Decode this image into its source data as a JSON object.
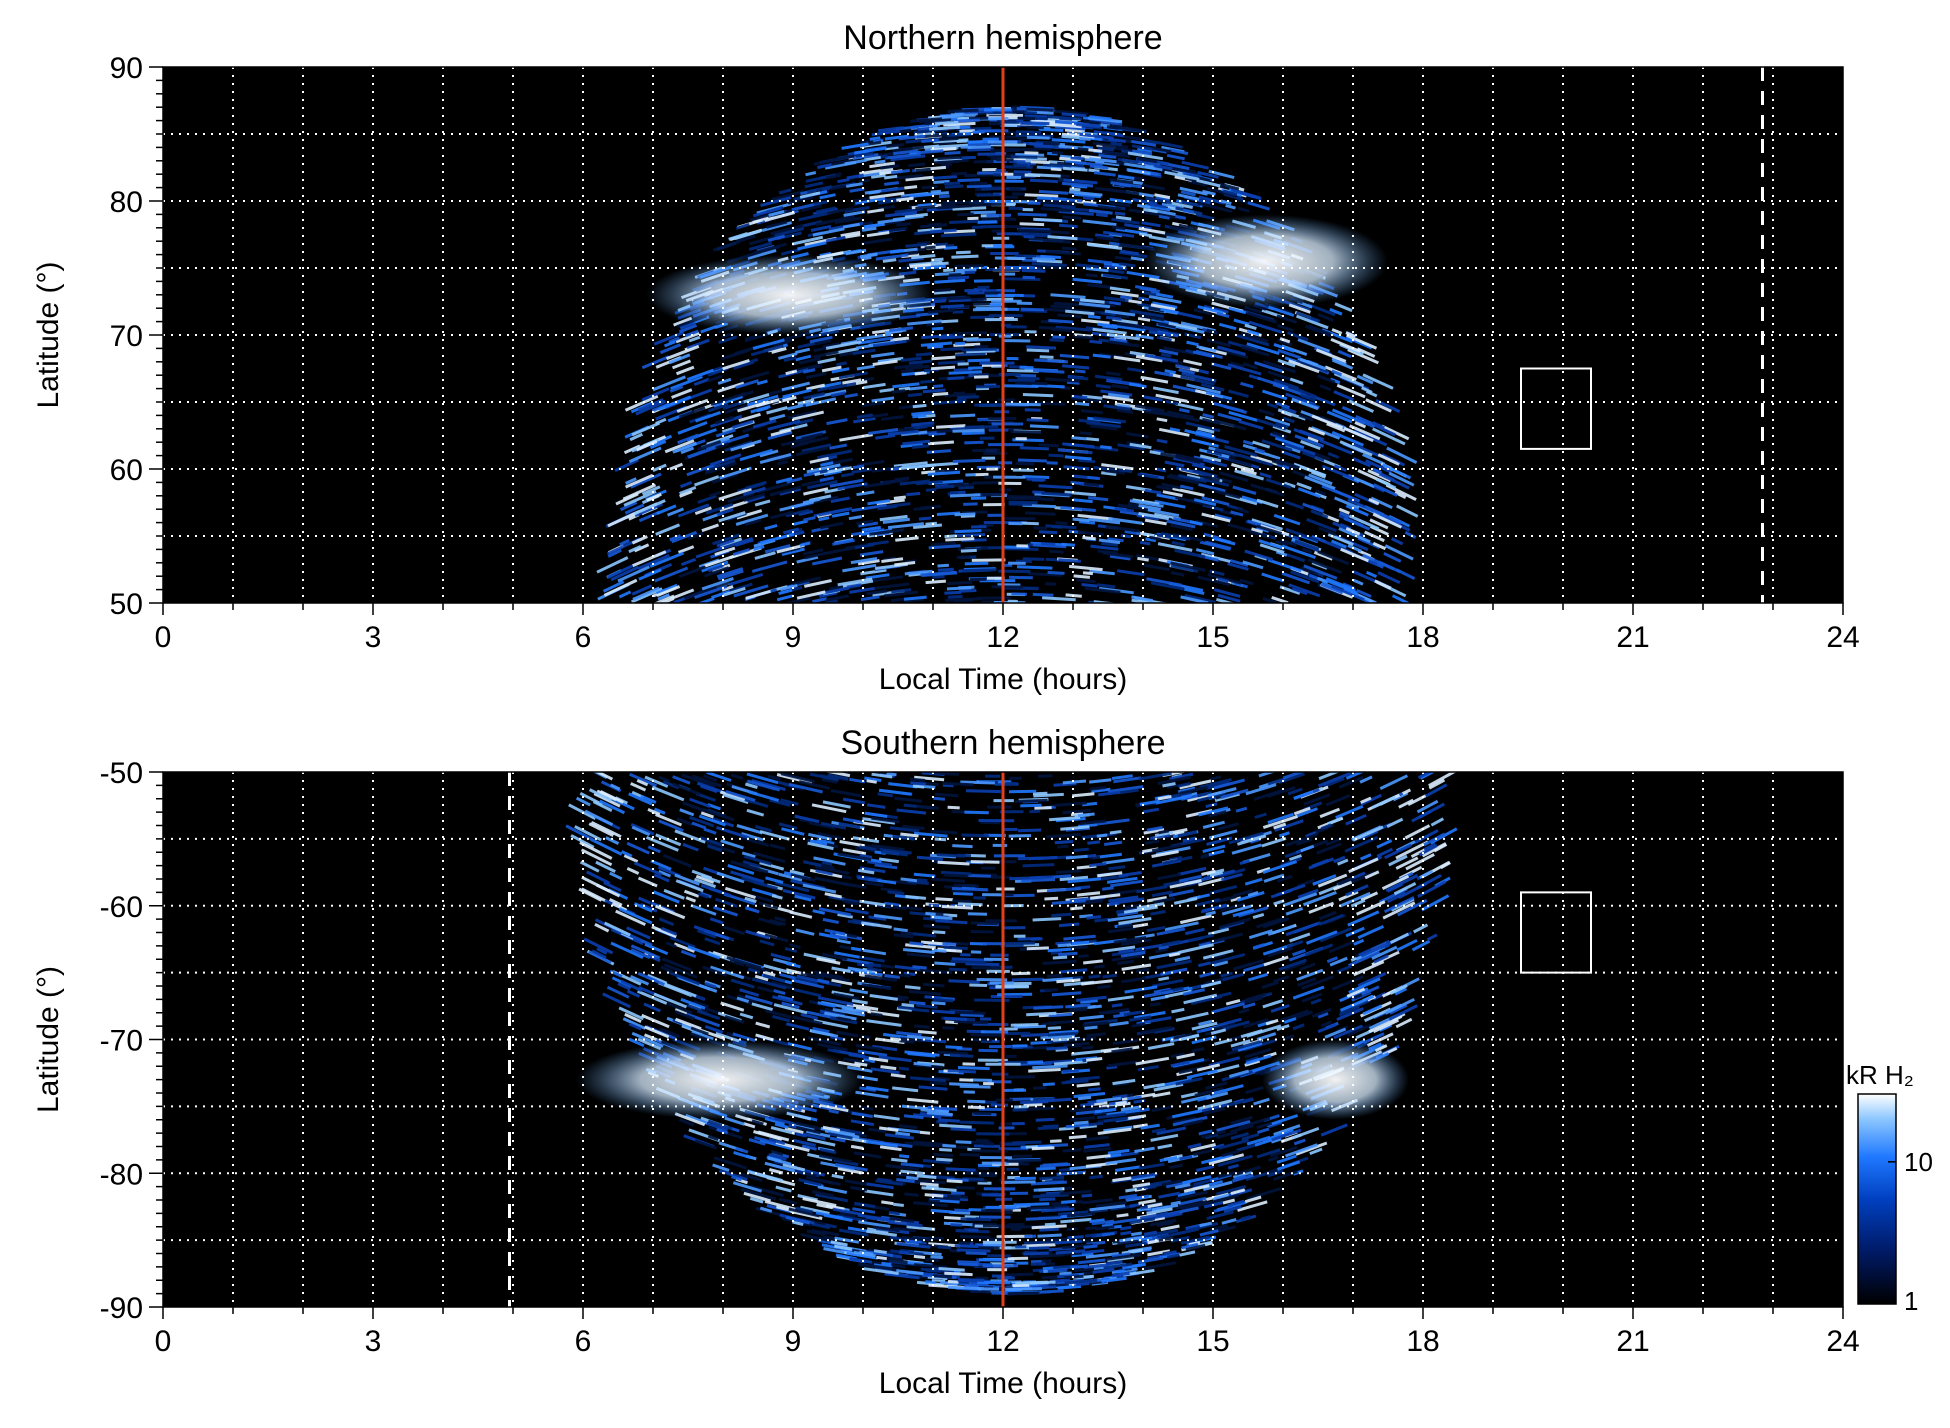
{
  "chart_data": [
    {
      "type": "heatmap",
      "title": "Northern hemisphere",
      "xlabel": "Local Time (hours)",
      "ylabel": "Latitude (°)",
      "xlim": [
        0,
        24
      ],
      "ylim": [
        50,
        90
      ],
      "x_ticks": [
        0,
        3,
        6,
        9,
        12,
        15,
        18,
        21,
        24
      ],
      "y_ticks": [
        50,
        60,
        70,
        80,
        90
      ],
      "x_tick_labels": [
        "0",
        "3",
        "6",
        "9",
        "12",
        "15",
        "18",
        "21",
        "24"
      ],
      "y_tick_labels": [
        "50",
        "60",
        "70",
        "80",
        "90"
      ],
      "grid": true,
      "grid_x_step": 1,
      "grid_y_step": 5,
      "coverage": {
        "lt_min": 6.4,
        "lt_max": 17.9,
        "lat_top": 87
      },
      "bright_oval": [
        {
          "lt": [
            6.9,
            11.0
          ],
          "lat": [
            70,
            76
          ]
        },
        {
          "lt": [
            14.0,
            17.5
          ],
          "lat": [
            72,
            79
          ]
        }
      ],
      "reference_lines": [
        {
          "kind": "solid",
          "color": "#e0401a",
          "lt": 12
        },
        {
          "kind": "dashed",
          "color": "#ffffff",
          "lt": 22.85
        }
      ],
      "box": {
        "lt": [
          19.4,
          20.4
        ],
        "lat": [
          61.5,
          67.5
        ]
      }
    },
    {
      "type": "heatmap",
      "title": "Southern hemisphere",
      "xlabel": "Local Time (hours)",
      "ylabel": "Latitude (°)",
      "xlim": [
        0,
        24
      ],
      "ylim": [
        -90,
        -50
      ],
      "x_ticks": [
        0,
        3,
        6,
        9,
        12,
        15,
        18,
        21,
        24
      ],
      "y_ticks": [
        -50,
        -60,
        -70,
        -80,
        -90
      ],
      "x_tick_labels": [
        "0",
        "3",
        "6",
        "9",
        "12",
        "15",
        "18",
        "21",
        "24"
      ],
      "y_tick_labels": [
        "-50",
        "-60",
        "-70",
        "-80",
        "-90"
      ],
      "grid": true,
      "grid_x_step": 1,
      "grid_y_step": 5,
      "coverage": {
        "lt_min": 5.9,
        "lt_max": 18.4,
        "lat_bottom": -89
      },
      "bright_oval": [
        {
          "lt": [
            5.9,
            10.0
          ],
          "lat": [
            -76,
            -70
          ]
        },
        {
          "lt": [
            15.7,
            17.8
          ],
          "lat": [
            -76,
            -70
          ]
        }
      ],
      "reference_lines": [
        {
          "kind": "solid",
          "color": "#e0401a",
          "lt": 12
        },
        {
          "kind": "dashed",
          "color": "#ffffff",
          "lt": 4.95
        }
      ],
      "box": {
        "lt": [
          19.4,
          20.4
        ],
        "lat": [
          -65,
          -59
        ]
      }
    }
  ],
  "colorbar": {
    "label": "kR H₂",
    "scale": "log",
    "range": [
      1,
      30
    ],
    "tick_labels": [
      "10",
      "1"
    ],
    "colors": [
      "#000000",
      "#001a66",
      "#0040c0",
      "#1f78ff",
      "#8cc6ff",
      "#ffffff"
    ]
  }
}
